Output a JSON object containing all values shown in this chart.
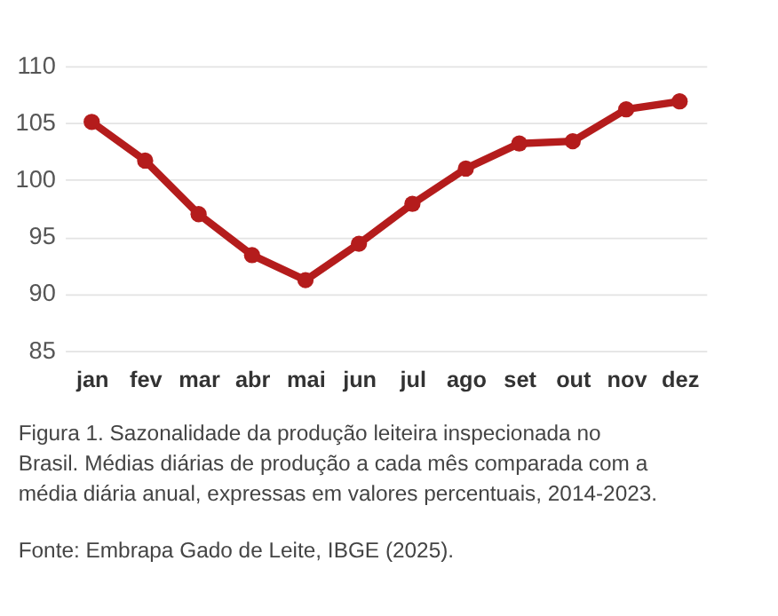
{
  "chart_data": {
    "type": "line",
    "categories": [
      "jan",
      "fev",
      "mar",
      "abr",
      "mai",
      "jun",
      "jul",
      "ago",
      "set",
      "out",
      "nov",
      "dez"
    ],
    "series": [
      {
        "color": "#b41c1c",
        "values": [
          105.1,
          101.7,
          97.0,
          93.4,
          91.2,
          94.4,
          97.9,
          101.0,
          103.2,
          103.4,
          106.2,
          106.9
        ]
      }
    ],
    "ylim": [
      85,
      110
    ],
    "yticks": [
      85,
      90,
      95,
      100,
      105,
      110
    ],
    "grid": "y",
    "marker": "circle",
    "line_style": "solid",
    "annotations": [
      "Figura 1. Sazonalidade da produção leiteira inspecionada no Brasil. Médias diárias de produção a cada mês comparada com a média diária anual, expressas em valores percentuais, 2014-2023.",
      "Fonte: Embrapa Gado de Leite, IBGE (2025)."
    ]
  }
}
